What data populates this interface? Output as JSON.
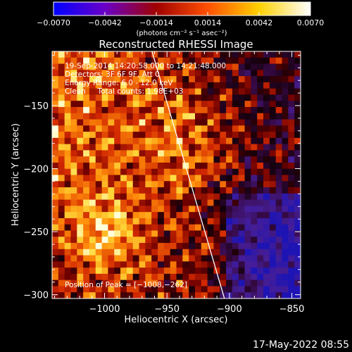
{
  "chart_data": {
    "type": "heatmap",
    "title": "Reconstructed RHESSI Image",
    "xlabel": "Heliocentric X (arcsec)",
    "ylabel": "Heliocentric Y (arcsec)",
    "xlim": [
      -1042,
      -843
    ],
    "ylim": [
      -303,
      -107
    ],
    "x_ticks": [
      -1000,
      -950,
      -900,
      -850
    ],
    "y_ticks": [
      -300,
      -250,
      -200,
      -150
    ],
    "x_tick_labels": [
      "−1000",
      "−950",
      "−900",
      "−850"
    ],
    "y_tick_labels": [
      "−300",
      "−250",
      "−200",
      "−150"
    ],
    "colorbar": {
      "range": [
        -0.007,
        0.007
      ],
      "ticks": [
        -0.007,
        -0.0042,
        -0.0014,
        0.0014,
        0.0042,
        0.007
      ],
      "tick_labels": [
        "−0.0070",
        "−0.0042",
        "−0.0014",
        "0.0014",
        "0.0042",
        "0.0070"
      ],
      "unit_label": "(photons cm⁻² s⁻¹ asec⁻²)",
      "colors": [
        "#0000ff",
        "#6a00c8",
        "#a00000",
        "#ff5000",
        "#ffd000",
        "#ffffff"
      ]
    },
    "annotations": [
      "19-Sep-2014 14:20:58.000 to 14:21:48.000",
      "Detectors: 3F 6F 9F, Att 0",
      "Energy Range: 6.0 - 12.0 keV",
      "Clean     Total counts: 1.98E+03",
      "Position of Peak = [−1008,−262]"
    ],
    "peak": {
      "x": -1008,
      "y": -262
    },
    "limb_line": [
      [
        -962,
        -107
      ],
      [
        -904,
        -303
      ]
    ],
    "grid": false
  },
  "footer": {
    "timestamp": "17-May-2022 08:55"
  }
}
